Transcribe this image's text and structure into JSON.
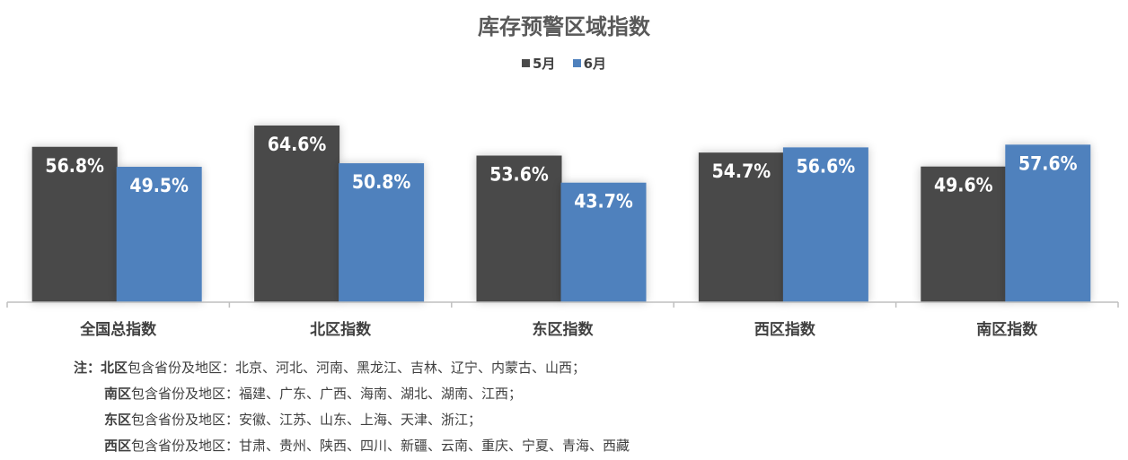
{
  "chart_data": {
    "type": "bar",
    "title": "库存预警区域指数",
    "categories": [
      "全国总指数",
      "北区指数",
      "东区指数",
      "西区指数",
      "南区指数"
    ],
    "series": [
      {
        "name": "5月",
        "color": "#4a4a4a",
        "values": [
          56.8,
          64.6,
          53.6,
          54.7,
          49.6
        ]
      },
      {
        "name": "6月",
        "color": "#4f81bd",
        "values": [
          49.5,
          50.8,
          43.7,
          56.6,
          57.6
        ]
      }
    ],
    "value_format": "percent",
    "ylim": [
      0,
      70
    ],
    "legend": "top-center",
    "grid": false
  },
  "notes": {
    "prefix": "注：",
    "lines": [
      {
        "region": "北区",
        "text": "包含省份及地区：北京、河北、河南、黑龙江、吉林、辽宁、内蒙古、山西；"
      },
      {
        "region": "南区",
        "text": "包含省份及地区：福建、广东、广西、海南、湖北、湖南、江西；"
      },
      {
        "region": "东区",
        "text": "包含省份及地区：安徽、江苏、山东、上海、天津、浙江；"
      },
      {
        "region": "西区",
        "text": "包含省份及地区：甘肃、贵州、陕西、四川、新疆、云南、重庆、宁夏、青海、西藏"
      }
    ]
  }
}
